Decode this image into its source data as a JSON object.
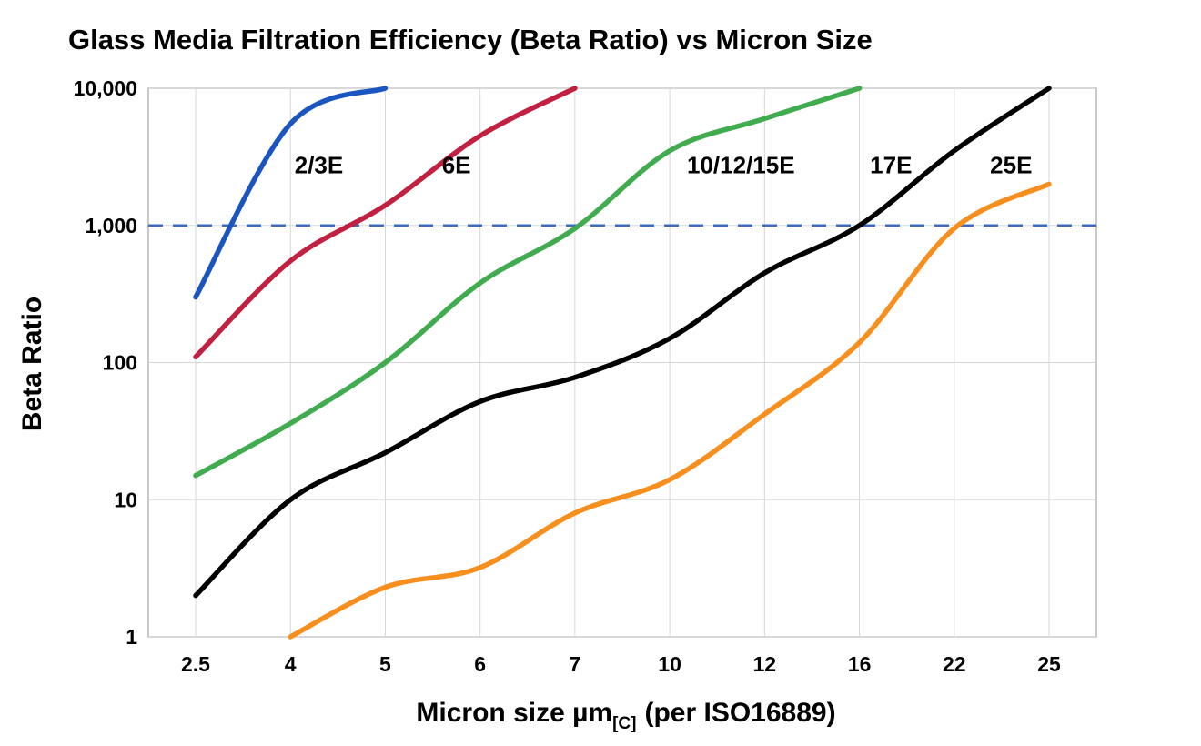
{
  "chart_data": {
    "type": "line",
    "title": "Glass Media Filtration Efficiency (Beta Ratio) vs Micron Size",
    "ylabel": "Beta Ratio",
    "xlabel_main": "Micron size µm",
    "xlabel_sub": "[C]",
    "xlabel_tail": "(per ISO16889)",
    "y_scale": "log",
    "ylim": [
      1,
      10000
    ],
    "y_ticks": [
      1,
      10,
      100,
      1000,
      10000
    ],
    "y_tick_labels": [
      "1",
      "10",
      "100",
      "1,000",
      "10,000"
    ],
    "x_categories": [
      2.5,
      4,
      5,
      6,
      7,
      10,
      12,
      16,
      22,
      25
    ],
    "x_tick_labels": [
      "2.5",
      "4",
      "5",
      "6",
      "7",
      "10",
      "12",
      "16",
      "22",
      "25"
    ],
    "grid": true,
    "legend_position": "inline-curve-labels",
    "reference_line": {
      "y": 1000,
      "style": "dashed",
      "color": "#3a6bbf"
    },
    "series": [
      {
        "name": "2/3E",
        "color": "#1b55c0",
        "x": [
          2.5,
          4,
          5
        ],
        "values": [
          300,
          5500,
          10000
        ],
        "label": {
          "text": "2/3E",
          "x": 4.3,
          "y": 2400
        }
      },
      {
        "name": "6E",
        "color": "#c22040",
        "x": [
          2.5,
          4,
          5,
          6,
          7
        ],
        "values": [
          110,
          550,
          1400,
          4500,
          10000
        ],
        "label": {
          "text": "6E",
          "x": 5.75,
          "y": 2400
        }
      },
      {
        "name": "10/12/15E",
        "color": "#41ac4f",
        "x": [
          2.5,
          4,
          5,
          6,
          7,
          10,
          12,
          16
        ],
        "values": [
          15,
          36,
          100,
          380,
          950,
          3500,
          6000,
          10000
        ],
        "label": {
          "text": "10/12/15E",
          "x": 11.5,
          "y": 2400
        }
      },
      {
        "name": "17E",
        "color": "#000000",
        "x": [
          2.5,
          4,
          5,
          6,
          7,
          10,
          12,
          16,
          22,
          25
        ],
        "values": [
          2,
          10,
          22,
          52,
          78,
          150,
          450,
          1000,
          3500,
          10000
        ],
        "label": {
          "text": "17E",
          "x": 18,
          "y": 2400
        }
      },
      {
        "name": "25E",
        "color": "#f78f1e",
        "x": [
          4,
          5,
          6,
          7,
          10,
          12,
          16,
          22,
          25
        ],
        "values": [
          1,
          2.3,
          3.2,
          8,
          14,
          42,
          140,
          950,
          2000
        ],
        "label": {
          "text": "25E",
          "x": 23.8,
          "y": 2400
        }
      }
    ]
  }
}
